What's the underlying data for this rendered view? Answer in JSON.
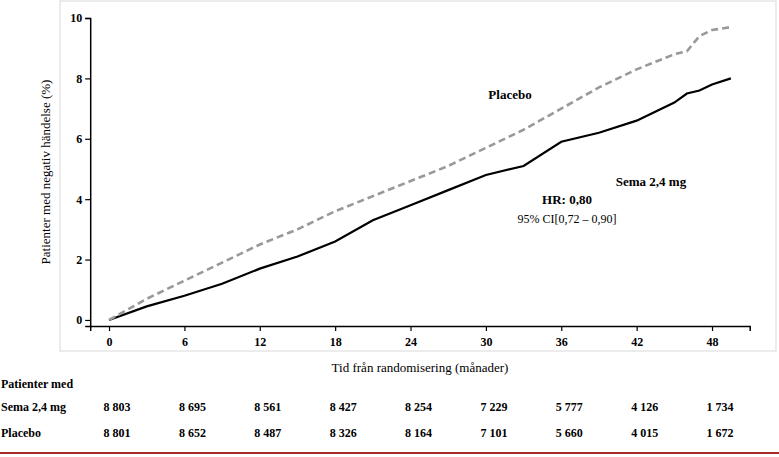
{
  "chart_data": {
    "type": "line",
    "x_label": "Tid från randomisering (månader)",
    "y_label": "Patienter med negativ händelse (%)",
    "annotations": [
      "HR: 0,80",
      "95% CI[0,72 – 0,90]"
    ],
    "x": [
      0,
      3,
      6,
      9,
      12,
      15,
      18,
      21,
      24,
      27,
      30,
      33,
      36,
      39,
      42,
      45,
      46,
      47,
      48,
      49.5
    ],
    "series": [
      {
        "name": "Sema 2,4 mg",
        "color": "#000000",
        "line_style": "solid",
        "values": [
          0,
          0.45,
          0.8,
          1.2,
          1.7,
          2.1,
          2.6,
          3.3,
          3.8,
          4.3,
          4.8,
          5.1,
          5.9,
          6.2,
          6.6,
          7.2,
          7.5,
          7.6,
          7.8,
          8.0
        ]
      },
      {
        "name": "Placebo",
        "color": "#999999",
        "line_style": "dashed",
        "values": [
          0,
          0.7,
          1.3,
          1.9,
          2.5,
          3.0,
          3.6,
          4.1,
          4.6,
          5.1,
          5.7,
          6.3,
          7.0,
          7.7,
          8.3,
          8.8,
          8.9,
          9.4,
          9.6,
          9.7
        ]
      }
    ],
    "xlim": [
      -1.5,
      51
    ],
    "ylim": [
      -0.2,
      10
    ],
    "xticks": [
      0,
      6,
      12,
      18,
      24,
      30,
      36,
      42,
      48
    ],
    "yticks": [
      0,
      2,
      4,
      6,
      8,
      10
    ],
    "grid": false,
    "at_risk": {
      "title": "Patienter med",
      "rows": [
        {
          "name": "Sema 2,4 mg",
          "counts": [
            "8 803",
            "8 695",
            "8 561",
            "8 427",
            "8 254",
            "7 229",
            "5 777",
            "4 126",
            "1 734"
          ]
        },
        {
          "name": "Placebo",
          "counts": [
            "8 801",
            "8 652",
            "8 487",
            "8 326",
            "8 164",
            "7 101",
            "5 660",
            "4 015",
            "1 672"
          ]
        }
      ]
    }
  }
}
